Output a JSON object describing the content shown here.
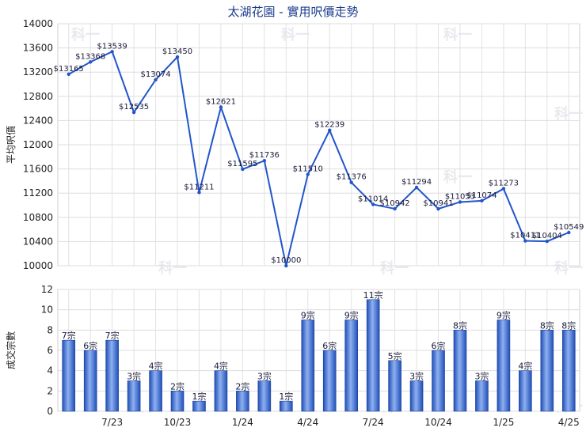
{
  "title": "太湖花園 - 實用呎價走勢",
  "watermark": "科一",
  "chart_data": [
    {
      "type": "line",
      "ylabel": "平均呎價",
      "ylim": [
        10000,
        14000
      ],
      "yticks": [
        10000,
        10400,
        10800,
        11200,
        11600,
        12000,
        12400,
        12800,
        13200,
        13600,
        14000
      ],
      "grid": true,
      "color": "#2255cc",
      "series": [
        {
          "values": [
            13165,
            13368,
            13539,
            12535,
            13074,
            13450,
            11211,
            12621,
            11595,
            11736,
            10000,
            11510,
            12239,
            11376,
            11014,
            10942,
            11294,
            10941,
            11053,
            11074,
            11273,
            10411,
            10404,
            10549
          ],
          "labels": [
            "$13165",
            "$13368",
            "$13539",
            "$12535",
            "$13074",
            "$13450",
            "$11211",
            "$12621",
            "$11595",
            "$11736",
            "$10000",
            "$11510",
            "$12239",
            "$11376",
            "$11014",
            "$10942",
            "$11294",
            "$10941",
            "$11053",
            "$11074",
            "$11273",
            "$10411",
            "$10404",
            "$10549"
          ]
        }
      ]
    },
    {
      "type": "bar",
      "ylabel": "成交宗數",
      "ylim": [
        0,
        12
      ],
      "yticks": [
        0,
        2,
        4,
        6,
        8,
        10,
        12
      ],
      "grid": true,
      "color": "#3366cc",
      "categories": [
        "",
        "",
        "7/23",
        "",
        "",
        "10/23",
        "",
        "",
        "1/24",
        "",
        "",
        "4/24",
        "",
        "",
        "7/24",
        "",
        "",
        "10/24",
        "",
        "",
        "1/25",
        "",
        "",
        "4/25"
      ],
      "series": [
        {
          "values": [
            7,
            6,
            7,
            3,
            4,
            2,
            1,
            4,
            2,
            3,
            1,
            9,
            6,
            9,
            11,
            5,
            3,
            6,
            8,
            3,
            9,
            4,
            8,
            8
          ],
          "labels": [
            "7宗",
            "6宗",
            "7宗",
            "3宗",
            "4宗",
            "2宗",
            "1宗",
            "4宗",
            "2宗",
            "3宗",
            "1宗",
            "9宗",
            "6宗",
            "9宗",
            "11宗",
            "5宗",
            "3宗",
            "6宗",
            "8宗",
            "3宗",
            "9宗",
            "4宗",
            "8宗",
            "8宗"
          ]
        }
      ]
    }
  ]
}
